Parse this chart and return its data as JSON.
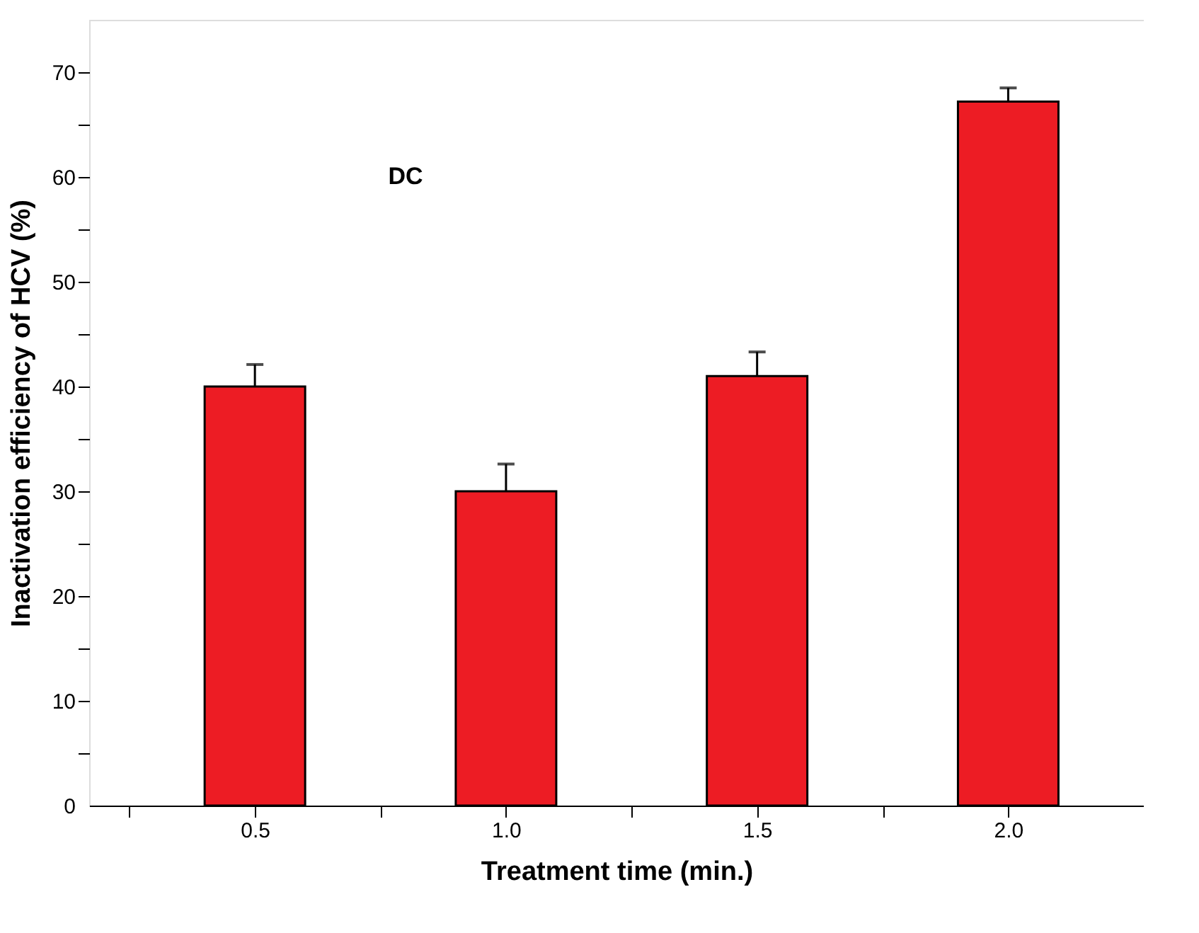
{
  "chart_data": {
    "type": "bar",
    "xlabel": "Treatment time (min.)",
    "ylabel": "Inactivation efficiency of HCV (%)",
    "annotations": [
      "DC"
    ],
    "x": [
      0.5,
      1.0,
      1.5,
      2.0
    ],
    "values": [
      40,
      30,
      41,
      67.2
    ],
    "errors": [
      [
        40,
        42.1
      ],
      [
        30,
        32.6
      ],
      [
        41,
        43.3
      ],
      [
        67.2,
        68.5
      ]
    ],
    "color": "#ed1c24",
    "xlim": [
      0.17,
      2.27
    ],
    "xticks": [
      {
        "value": 0.25,
        "label": null
      },
      {
        "value": 0.5,
        "label": "0.5"
      },
      {
        "value": 0.75,
        "label": null
      },
      {
        "value": 1.0,
        "label": "1.0"
      },
      {
        "value": 1.25,
        "label": null
      },
      {
        "value": 1.5,
        "label": "1.5"
      },
      {
        "value": 1.75,
        "label": null
      },
      {
        "value": 2.0,
        "label": "2.0"
      }
    ],
    "ylim": [
      0,
      75
    ],
    "yticks": [
      0,
      {
        "value": 5,
        "label": null
      },
      10,
      {
        "value": 15,
        "label": null
      },
      20,
      {
        "value": 25,
        "label": null
      },
      30,
      {
        "value": 35,
        "label": null
      },
      40,
      {
        "value": 45,
        "label": null
      },
      50,
      {
        "value": 55,
        "label": null
      },
      60,
      {
        "value": 65,
        "label": null
      },
      70
    ],
    "grid": false
  }
}
